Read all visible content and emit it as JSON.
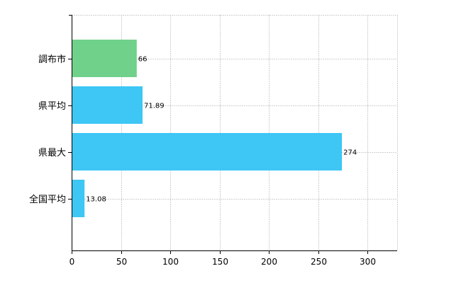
{
  "chart_data": {
    "type": "bar",
    "orientation": "horizontal",
    "categories": [
      "調布市",
      "県平均",
      "県最大",
      "全国平均"
    ],
    "values": [
      66,
      71.89,
      274,
      13.08
    ],
    "data_labels": [
      "66",
      "71.89",
      "274",
      "13.08"
    ],
    "bar_colors": [
      "#70d18a",
      "#3ec6f5",
      "#3ec6f5",
      "#3ec6f5"
    ],
    "xlim": [
      0,
      330
    ],
    "x_ticks": [
      0,
      50,
      100,
      150,
      200,
      250,
      300
    ],
    "grid": true,
    "legend": "none"
  }
}
